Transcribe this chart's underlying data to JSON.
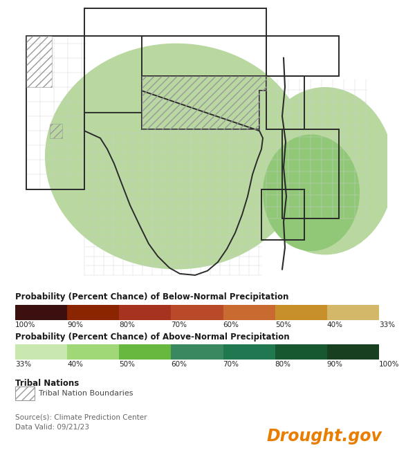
{
  "below_normal_colors": [
    "#3d1010",
    "#8b2500",
    "#a63220",
    "#b84a2a",
    "#c96a30",
    "#c8902a",
    "#d4b86a"
  ],
  "below_normal_labels": [
    "100%",
    "90%",
    "80%",
    "70%",
    "60%",
    "50%",
    "40%",
    "33%"
  ],
  "above_normal_colors": [
    "#c8e8b0",
    "#a0d878",
    "#68b840",
    "#3a8860",
    "#207850",
    "#185830",
    "#184020"
  ],
  "above_normal_labels": [
    "33%",
    "40%",
    "50%",
    "60%",
    "70%",
    "80%",
    "90%",
    "100%"
  ],
  "below_title": "Probability (Percent Chance) of Below-Normal Precipitation",
  "above_title": "Probability (Percent Chance) of Above-Normal Precipitation",
  "tribal_title": "Tribal Nations",
  "tribal_label": "Tribal Nation Boundaries",
  "source_text": "Source(s): Climate Prediction Center",
  "date_text": "Data Valid: 09/21/23",
  "drought_gov_text": "Drought.gov",
  "drought_gov_color": "#e87d00",
  "bg_color": "#ffffff",
  "light_green_40": "#b8d8a0",
  "light_green_50": "#90c878",
  "state_border_color": "#2a2a2a",
  "county_line_color": "#d0d0d0"
}
